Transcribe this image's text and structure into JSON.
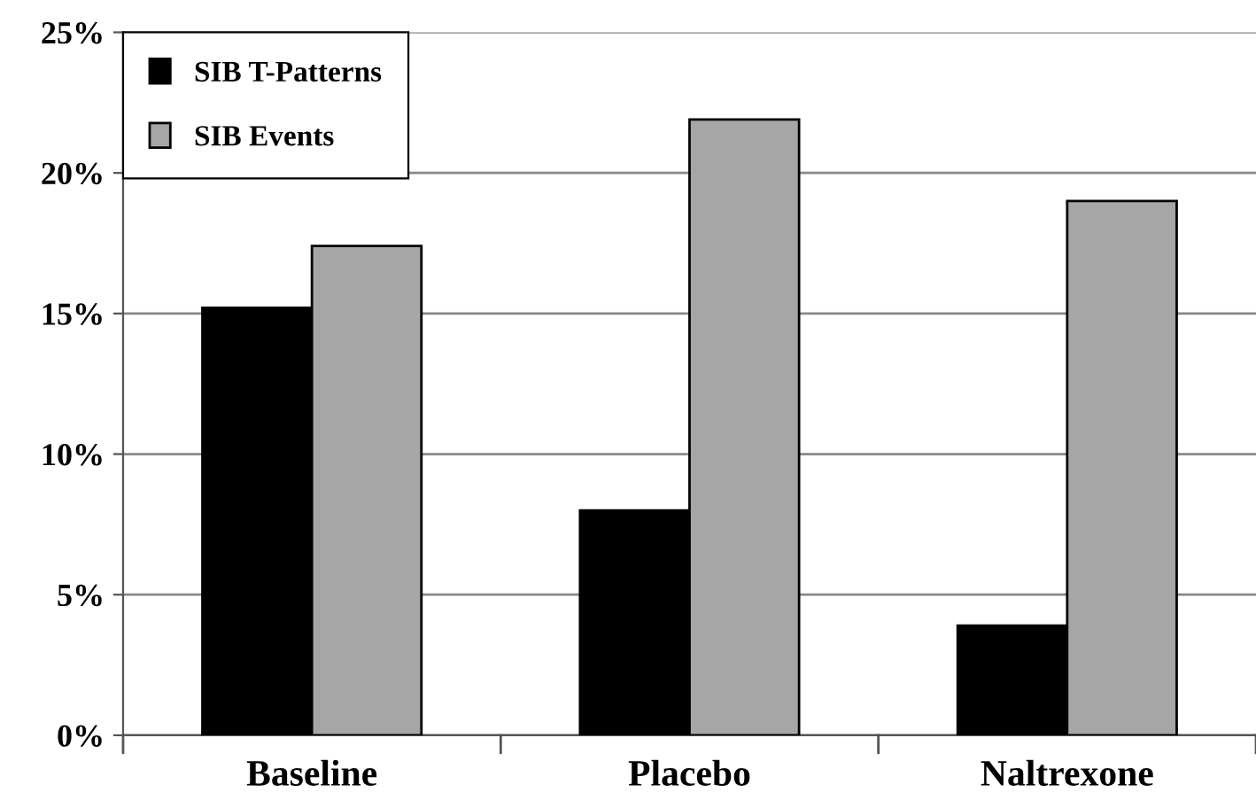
{
  "chart_data": {
    "type": "bar",
    "categories": [
      "Baseline",
      "Placebo",
      "Naltrexone"
    ],
    "series": [
      {
        "name": "SIB T-Patterns",
        "color": "#000000",
        "values": [
          15.2,
          8.0,
          3.9
        ]
      },
      {
        "name": "SIB Events",
        "color": "#a6a6a6",
        "values": [
          17.4,
          21.9,
          19.0
        ]
      }
    ],
    "ylim": [
      0,
      25
    ],
    "yticks": [
      {
        "value": 0,
        "label": "0%"
      },
      {
        "value": 5,
        "label": "5%"
      },
      {
        "value": 10,
        "label": "10%"
      },
      {
        "value": 15,
        "label": "15%"
      },
      {
        "value": 20,
        "label": "20%"
      },
      {
        "value": 25,
        "label": "25%"
      }
    ],
    "grid": "y",
    "legend": "top left"
  }
}
